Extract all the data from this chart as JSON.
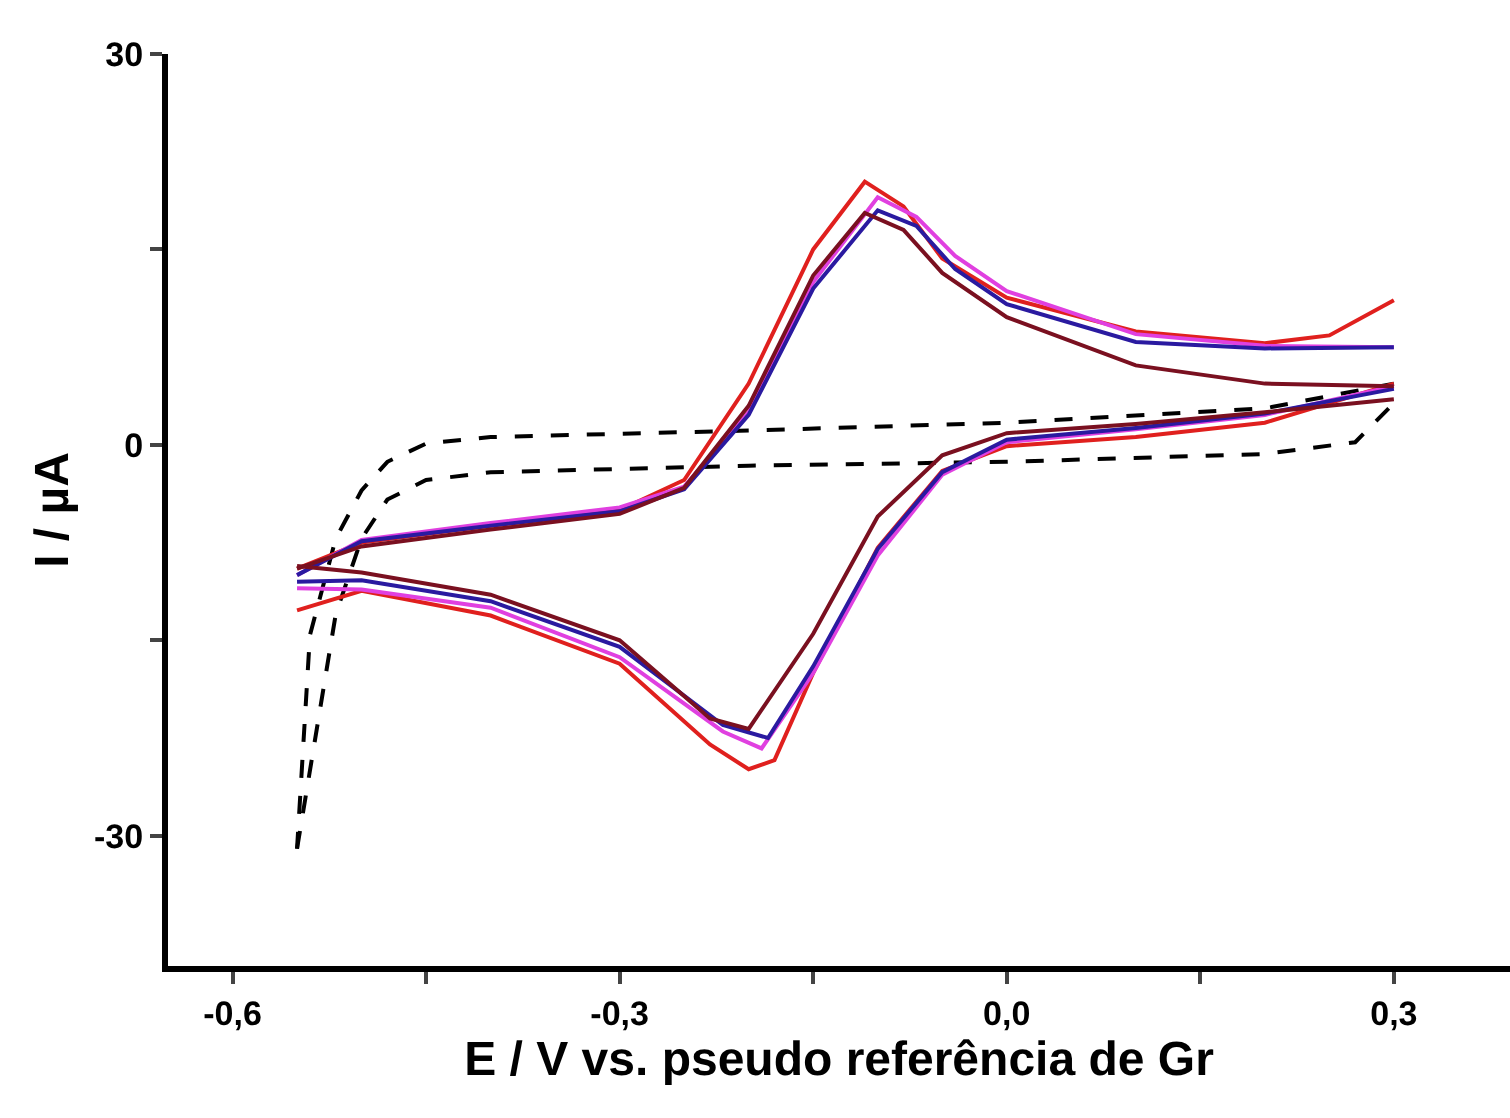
{
  "chart_data": {
    "type": "line",
    "xlabel": "E / V vs. pseudo referência de Gr",
    "ylabel": "I / µA",
    "xlim": [
      -0.65,
      0.39
    ],
    "ylim": [
      -40,
      30
    ],
    "xticks": [
      {
        "value": -0.6,
        "label": "-0,6"
      },
      {
        "value": -0.45,
        "label": null
      },
      {
        "value": -0.3,
        "label": "-0,3"
      },
      {
        "value": -0.15,
        "label": null
      },
      {
        "value": 0.0,
        "label": "0,0"
      },
      {
        "value": 0.15,
        "label": null
      },
      {
        "value": 0.3,
        "label": "0,3"
      }
    ],
    "yticks": [
      30,
      {
        "value": 15,
        "label": null
      },
      0,
      {
        "value": -15,
        "label": null
      },
      -30
    ],
    "marker": "none",
    "series": [
      {
        "color": "#000000",
        "line_style": "dashed",
        "x": [
          -0.55,
          -0.52,
          -0.5,
          -0.48,
          -0.45,
          -0.4,
          -0.2,
          0.0,
          0.2,
          0.27,
          0.3
        ],
        "values": [
          -31,
          -13,
          -7.2,
          -4.2,
          -2.7,
          -2.1,
          -1.6,
          -1.3,
          -0.7,
          0.2,
          3.2
        ]
      },
      {
        "color": "#000000",
        "line_style": "dashed",
        "x": [
          0.3,
          0.2,
          0.0,
          -0.2,
          -0.4,
          -0.45,
          -0.48,
          -0.5,
          -0.52,
          -0.54,
          -0.55
        ],
        "values": [
          4.7,
          2.8,
          1.7,
          1.1,
          0.6,
          0.1,
          -1.3,
          -3.5,
          -7.2,
          -14.6,
          -31
        ]
      },
      {
        "color": "#e0201e",
        "line_style": "solid",
        "x": [
          -0.55,
          -0.5,
          -0.4,
          -0.3,
          -0.25,
          -0.2,
          -0.15,
          -0.11,
          -0.08,
          -0.05,
          0.0,
          0.1,
          0.2,
          0.25,
          0.3
        ],
        "values": [
          -9.5,
          -7.5,
          -6.2,
          -5,
          -2.7,
          4.7,
          15,
          20.2,
          18.3,
          14.3,
          11.3,
          8.7,
          7.8,
          8.4,
          11.1
        ]
      },
      {
        "color": "#e0201e",
        "line_style": "solid",
        "x": [
          0.3,
          0.2,
          0.1,
          0.0,
          -0.05,
          -0.1,
          -0.15,
          -0.18,
          -0.2,
          -0.23,
          -0.3,
          -0.4,
          -0.5,
          -0.55
        ],
        "values": [
          4.7,
          1.7,
          0.6,
          -0.1,
          -2,
          -7.9,
          -17.5,
          -24.2,
          -24.9,
          -23,
          -16.8,
          -13.1,
          -11.2,
          -12.7
        ]
      },
      {
        "color": "#e040e0",
        "line_style": "solid",
        "x": [
          -0.55,
          -0.5,
          -0.4,
          -0.3,
          -0.25,
          -0.2,
          -0.15,
          -0.1,
          -0.07,
          -0.04,
          0.0,
          0.1,
          0.2,
          0.3
        ],
        "values": [
          -10,
          -7.3,
          -6,
          -4.8,
          -3.2,
          2.5,
          12.5,
          19,
          17.5,
          14.5,
          11.8,
          8.5,
          7.6,
          7.5
        ]
      },
      {
        "color": "#e040e0",
        "line_style": "solid",
        "x": [
          0.3,
          0.2,
          0.1,
          0.0,
          -0.05,
          -0.1,
          -0.15,
          -0.19,
          -0.22,
          -0.3,
          -0.4,
          -0.5,
          -0.55
        ],
        "values": [
          4.5,
          2.3,
          1.2,
          0.2,
          -2.3,
          -8.5,
          -17.5,
          -23.3,
          -22,
          -16.3,
          -12.5,
          -11.1,
          -11
        ]
      },
      {
        "color": "#2a1aa0",
        "line_style": "solid",
        "x": [
          -0.55,
          -0.5,
          -0.4,
          -0.3,
          -0.25,
          -0.2,
          -0.15,
          -0.1,
          -0.07,
          -0.04,
          0.0,
          0.1,
          0.2,
          0.3
        ],
        "values": [
          -10,
          -7.4,
          -6.2,
          -5.1,
          -3.4,
          2.3,
          12,
          18,
          16.8,
          13.5,
          10.8,
          7.9,
          7.4,
          7.5
        ]
      },
      {
        "color": "#2a1aa0",
        "line_style": "solid",
        "x": [
          0.3,
          0.2,
          0.1,
          0.0,
          -0.05,
          -0.1,
          -0.15,
          -0.185,
          -0.22,
          -0.3,
          -0.4,
          -0.5,
          -0.55
        ],
        "values": [
          4.3,
          2.4,
          1.3,
          0.4,
          -2.1,
          -8,
          -17,
          -22.5,
          -21.5,
          -15.5,
          -12,
          -10.4,
          -10.5
        ]
      },
      {
        "color": "#7a1020",
        "line_style": "solid",
        "x": [
          -0.55,
          -0.5,
          -0.4,
          -0.3,
          -0.25,
          -0.2,
          -0.15,
          -0.11,
          -0.08,
          -0.05,
          0.0,
          0.1,
          0.2,
          0.3
        ],
        "values": [
          -9.5,
          -7.8,
          -6.5,
          -5.3,
          -3.3,
          3,
          13,
          17.8,
          16.5,
          13.2,
          9.8,
          6.1,
          4.7,
          4.5
        ]
      },
      {
        "color": "#7a1020",
        "line_style": "solid",
        "x": [
          0.3,
          0.2,
          0.1,
          0.0,
          -0.05,
          -0.1,
          -0.15,
          -0.2,
          -0.23,
          -0.3,
          -0.4,
          -0.5,
          -0.55
        ],
        "values": [
          3.5,
          2.5,
          1.6,
          0.9,
          -0.8,
          -5.5,
          -14.5,
          -21.8,
          -21,
          -15,
          -11.5,
          -9.8,
          -9.3
        ]
      }
    ]
  }
}
